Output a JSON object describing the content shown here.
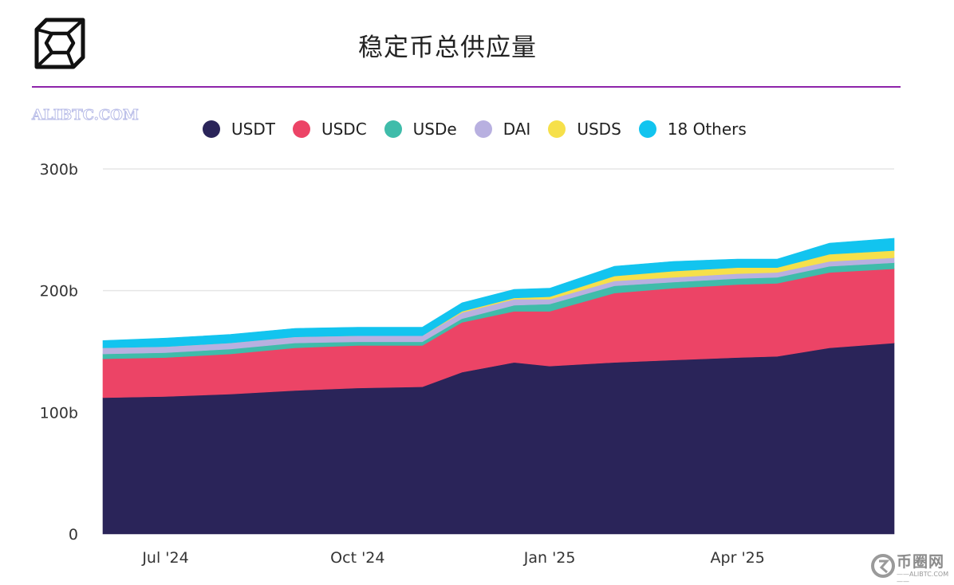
{
  "title": "稳定币总供应量",
  "watermark": "ALIBTC.COM",
  "brand": {
    "name": "币圈网",
    "sub": "——ALIBTC.COM——"
  },
  "colors": {
    "USDT": "#2a2459",
    "USDC": "#ec4466",
    "USDe": "#3fbcaa",
    "DAI": "#b8b0e0",
    "USDS": "#f6e04a",
    "18 Others": "#12c4ef",
    "rule": "#8e24aa",
    "grid": "#e6e6e6"
  },
  "chart_data": {
    "type": "area",
    "stacked": true,
    "title": "稳定币总供应量",
    "x": [
      "2024-06-01",
      "2024-07-01",
      "2024-08-01",
      "2024-09-01",
      "2024-10-01",
      "2024-11-01",
      "2024-11-20",
      "2024-12-15",
      "2025-01-01",
      "2025-02-01",
      "2025-03-01",
      "2025-04-01",
      "2025-04-20",
      "2025-05-15",
      "2025-06-15"
    ],
    "xlim": [
      "2024-06-01",
      "2025-06-15"
    ],
    "xticks": [
      {
        "label": "Jul '24",
        "date": "2024-07-01"
      },
      {
        "label": "Oct '24",
        "date": "2024-10-01"
      },
      {
        "label": "Jan '25",
        "date": "2025-01-01"
      },
      {
        "label": "Apr '25",
        "date": "2025-04-01"
      }
    ],
    "yticks": [
      "0",
      "100b",
      "200b",
      "300b"
    ],
    "ylim": [
      0,
      300
    ],
    "grid": true,
    "legend_position": "top",
    "series": [
      {
        "name": "USDT",
        "values": [
          112,
          113,
          115,
          118,
          120,
          121,
          133,
          141,
          138,
          141,
          143,
          145,
          146,
          153,
          157
        ]
      },
      {
        "name": "USDC",
        "values": [
          32,
          32,
          33,
          35,
          35,
          34,
          41,
          42,
          45,
          57,
          59,
          60,
          60,
          62,
          61
        ]
      },
      {
        "name": "USDe",
        "values": [
          4,
          4,
          4,
          4,
          3,
          3,
          3,
          5,
          6,
          6,
          5,
          5,
          5,
          5,
          5
        ]
      },
      {
        "name": "DAI",
        "values": [
          5,
          5,
          5,
          5,
          5,
          5,
          5,
          5,
          4,
          4,
          4,
          4,
          4,
          4,
          4
        ]
      },
      {
        "name": "USDS",
        "values": [
          0,
          0,
          0,
          0,
          0,
          0,
          1,
          1,
          2,
          4,
          5,
          5,
          4,
          6,
          6
        ]
      },
      {
        "name": "18 Others",
        "values": [
          6,
          7,
          7,
          7,
          7,
          7,
          7,
          7,
          7,
          8,
          8,
          7,
          7,
          9,
          10
        ]
      }
    ]
  }
}
